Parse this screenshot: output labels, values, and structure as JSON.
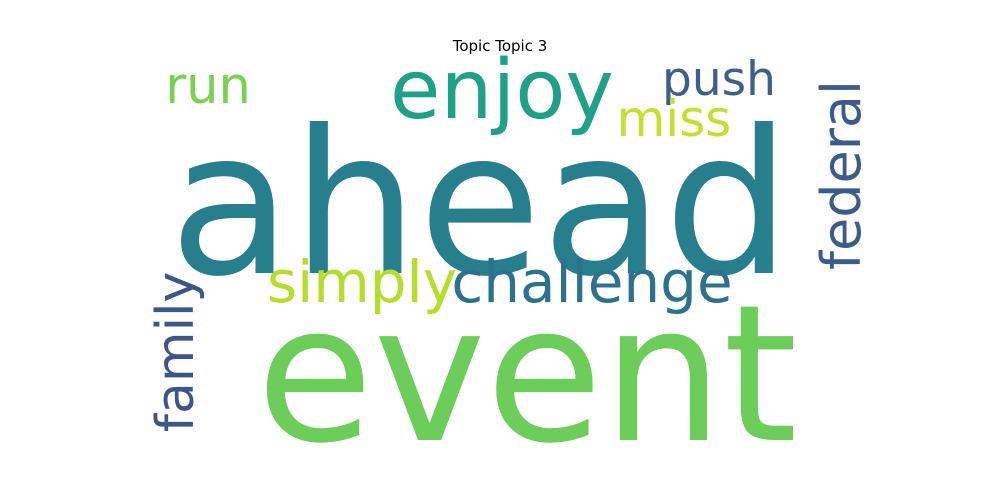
{
  "chart_data": {
    "type": "wordcloud",
    "title": "Topic Topic 3",
    "words": [
      {
        "text": "ahead",
        "weight": 1.0,
        "color": "#277f8e",
        "orientation": "horizontal"
      },
      {
        "text": "event",
        "weight": 0.95,
        "color": "#6ccd5a",
        "orientation": "horizontal"
      },
      {
        "text": "enjoy",
        "weight": 0.45,
        "color": "#1fa187",
        "orientation": "horizontal"
      },
      {
        "text": "challenge",
        "weight": 0.34,
        "color": "#2c728e",
        "orientation": "horizontal"
      },
      {
        "text": "simply",
        "weight": 0.34,
        "color": "#b5de2b",
        "orientation": "horizontal"
      },
      {
        "text": "federal",
        "weight": 0.33,
        "color": "#3b5b8c",
        "orientation": "vertical"
      },
      {
        "text": "family",
        "weight": 0.33,
        "color": "#3e5589",
        "orientation": "vertical"
      },
      {
        "text": "push",
        "weight": 0.3,
        "color": "#3e5f8a",
        "orientation": "horizontal"
      },
      {
        "text": "miss",
        "weight": 0.3,
        "color": "#c4e02e",
        "orientation": "horizontal"
      },
      {
        "text": "run",
        "weight": 0.29,
        "color": "#7ad151",
        "orientation": "horizontal"
      }
    ]
  }
}
